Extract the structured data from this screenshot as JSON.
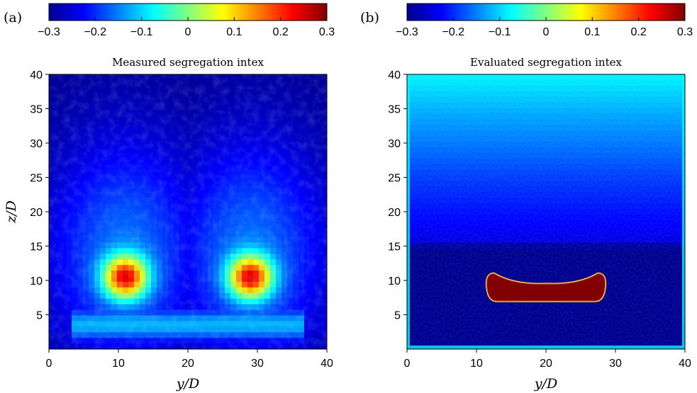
{
  "panel_labels": [
    "(a)",
    "(b)"
  ],
  "colormap_colors": [
    "#00008f",
    "#0000ff",
    "#0080ff",
    "#00ffff",
    "#80ff80",
    "#ffff00",
    "#ff8000",
    "#ff0000",
    "#800000"
  ],
  "chart_data": [
    {
      "type": "heatmap",
      "panel": "(a)",
      "title": "Measured segregation intex",
      "xlabel": "y/D",
      "ylabel": "z/D",
      "xlim": [
        0,
        40
      ],
      "ylim": [
        0,
        40
      ],
      "xticks": [
        0,
        10,
        20,
        30,
        40
      ],
      "yticks": [
        5,
        10,
        15,
        20,
        25,
        30,
        35,
        40
      ],
      "colorbar": {
        "min": -0.3,
        "max": 0.3,
        "ticks": [
          "-0.3",
          "-0.2",
          "-0.1",
          "0",
          "0.1",
          "0.2",
          "0.3"
        ]
      },
      "background_value": -0.3,
      "features": [
        {
          "kind": "blob",
          "center": [
            11,
            10.5
          ],
          "peak": 0.25,
          "sigma": [
            2.2,
            2.2
          ]
        },
        {
          "kind": "blob",
          "center": [
            29,
            10.5
          ],
          "peak": 0.25,
          "sigma": [
            2.2,
            2.2
          ]
        },
        {
          "kind": "halo",
          "center": [
            11,
            14
          ],
          "peak": -0.16,
          "sigma": [
            8,
            12
          ]
        },
        {
          "kind": "halo",
          "center": [
            29,
            14
          ],
          "peak": -0.16,
          "sigma": [
            8,
            12
          ]
        },
        {
          "kind": "floor",
          "z": 3.5,
          "peak": -0.12,
          "sigma_z": 1.8,
          "y_range": [
            3,
            37
          ]
        }
      ]
    },
    {
      "type": "heatmap",
      "panel": "(b)",
      "title": "Evaluated segregation intex",
      "xlabel": "y/D",
      "ylabel": "",
      "xlim": [
        0,
        40
      ],
      "ylim": [
        0,
        40
      ],
      "xticks": [
        0,
        10,
        20,
        30,
        40
      ],
      "yticks": [
        5,
        10,
        15,
        20,
        25,
        30,
        35,
        40
      ],
      "colorbar": {
        "min": -0.3,
        "max": 0.3,
        "ticks": [
          "-0.3",
          "-0.2",
          "-0.1",
          "0",
          "0.1",
          "0.2",
          "0.3"
        ]
      },
      "background_value": -0.3,
      "vertical_profile": [
        {
          "z": 15,
          "value": -0.29
        },
        {
          "z": 16,
          "value": -0.24
        },
        {
          "z": 25,
          "value": -0.19
        },
        {
          "z": 35,
          "value": -0.12
        },
        {
          "z": 40,
          "value": -0.08
        }
      ],
      "features": [
        {
          "kind": "plug",
          "y_range": [
            11.5,
            28.5
          ],
          "z_bottom": 7,
          "z_top_edges": 11,
          "z_top_center": 9.5,
          "value": 0.3
        }
      ]
    }
  ]
}
